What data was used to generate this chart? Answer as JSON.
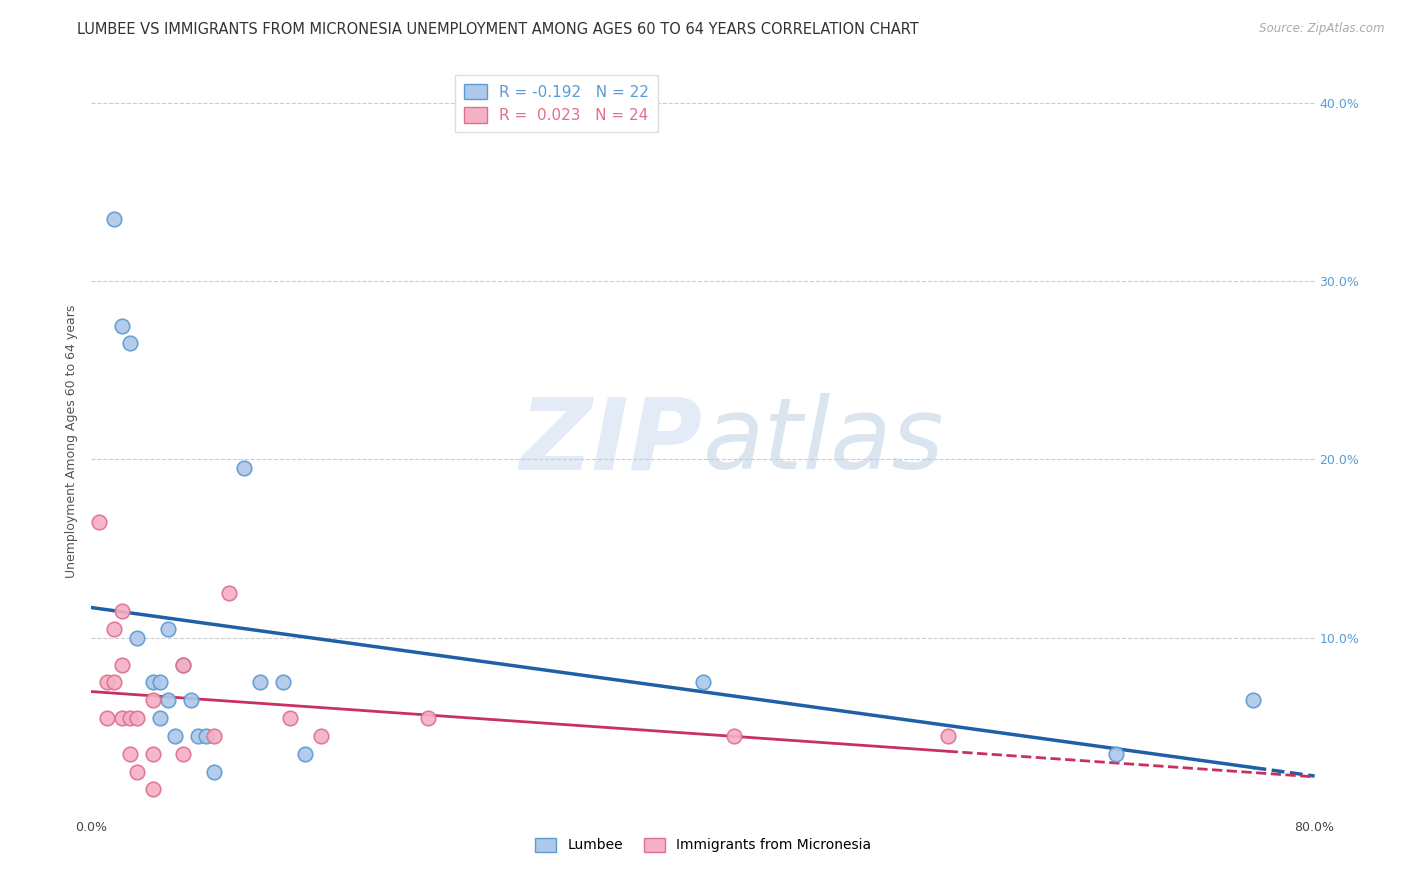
{
  "title": "LUMBEE VS IMMIGRANTS FROM MICRONESIA UNEMPLOYMENT AMONG AGES 60 TO 64 YEARS CORRELATION CHART",
  "source": "Source: ZipAtlas.com",
  "ylabel": "Unemployment Among Ages 60 to 64 years",
  "watermark": "ZIPatlas",
  "xlim": [
    0.0,
    0.8
  ],
  "ylim": [
    0.0,
    0.42
  ],
  "xticks": [
    0.0,
    0.1,
    0.2,
    0.3,
    0.4,
    0.5,
    0.6,
    0.7,
    0.8
  ],
  "yticks": [
    0.0,
    0.1,
    0.2,
    0.3,
    0.4
  ],
  "yticklabels_right": [
    "",
    "10.0%",
    "20.0%",
    "30.0%",
    "40.0%"
  ],
  "lumbee_color": "#adc8e8",
  "lumbee_edge_color": "#5b9bd5",
  "micronesia_color": "#f4b0c4",
  "micronesia_edge_color": "#e07090",
  "lumbee_R": -0.192,
  "lumbee_N": 22,
  "micronesia_R": 0.023,
  "micronesia_N": 24,
  "lumbee_line_color": "#1f5fa8",
  "micronesia_line_color": "#c83060",
  "grid_color": "#cccccc",
  "background_color": "#ffffff",
  "lumbee_x": [
    0.015,
    0.02,
    0.025,
    0.03,
    0.04,
    0.045,
    0.045,
    0.05,
    0.05,
    0.055,
    0.06,
    0.065,
    0.07,
    0.075,
    0.08,
    0.1,
    0.11,
    0.125,
    0.14,
    0.4,
    0.67,
    0.76
  ],
  "lumbee_y": [
    0.335,
    0.275,
    0.265,
    0.1,
    0.075,
    0.075,
    0.055,
    0.105,
    0.065,
    0.045,
    0.085,
    0.065,
    0.045,
    0.045,
    0.025,
    0.195,
    0.075,
    0.075,
    0.035,
    0.075,
    0.035,
    0.065
  ],
  "micronesia_x": [
    0.005,
    0.01,
    0.01,
    0.015,
    0.015,
    0.02,
    0.02,
    0.02,
    0.025,
    0.025,
    0.03,
    0.03,
    0.04,
    0.04,
    0.04,
    0.06,
    0.06,
    0.08,
    0.09,
    0.13,
    0.15,
    0.22,
    0.42,
    0.56
  ],
  "micronesia_y": [
    0.165,
    0.075,
    0.055,
    0.105,
    0.075,
    0.115,
    0.085,
    0.055,
    0.055,
    0.035,
    0.055,
    0.025,
    0.035,
    0.015,
    0.065,
    0.085,
    0.035,
    0.045,
    0.125,
    0.055,
    0.045,
    0.055,
    0.045,
    0.045
  ],
  "marker_size": 110,
  "title_fontsize": 10.5,
  "axis_label_fontsize": 9,
  "tick_fontsize": 9,
  "legend_fontsize": 11
}
